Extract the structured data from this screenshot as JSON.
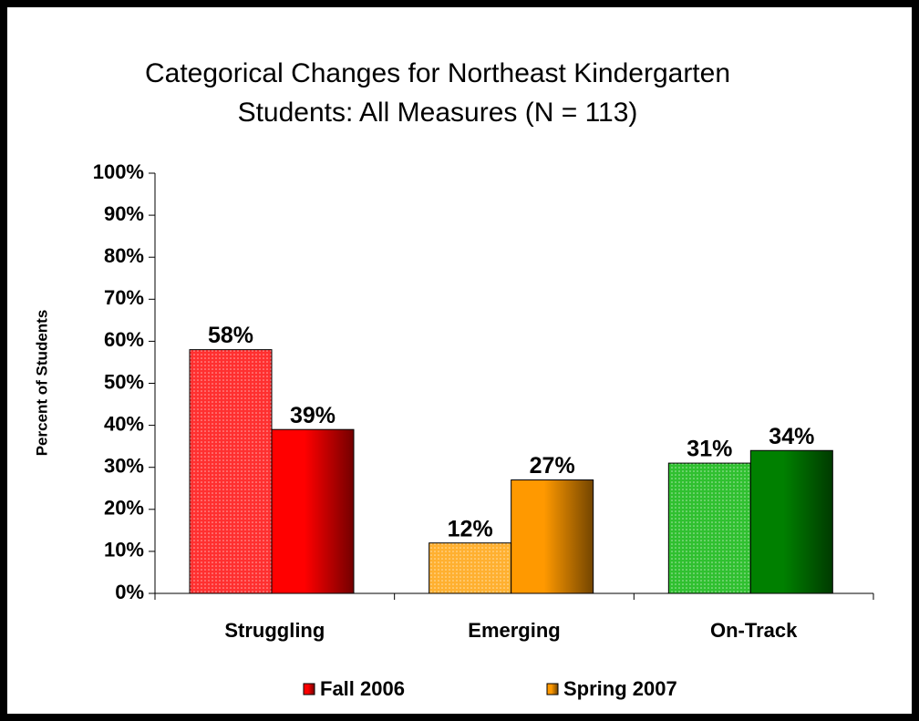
{
  "chart_data": {
    "type": "bar",
    "title": [
      "Categorical Changes for Northeast Kindergarten",
      "Students: All Measures (N = 113)"
    ],
    "y_label": "Percent of Students",
    "categories": [
      "Struggling",
      "Emerging",
      "On-Track"
    ],
    "series": [
      {
        "name": "Fall 2006",
        "color": "#ff0000",
        "bar_colors": [
          "#ff3030",
          "#ffb030",
          "#30c030"
        ],
        "pattern": "dots",
        "values": [
          58,
          12,
          31
        ],
        "value_labels": [
          "58%",
          "12%",
          "31%"
        ]
      },
      {
        "name": "Spring 2007",
        "color": "#ff9900",
        "bar_colors": [
          "#ff0000",
          "#ff9900",
          "#008000"
        ],
        "pattern": "gradient",
        "values": [
          39,
          27,
          34
        ],
        "value_labels": [
          "39%",
          "27%",
          "34%"
        ]
      }
    ],
    "ylim": [
      0,
      100
    ],
    "yticks": [
      {
        "value": 0,
        "label": "0%"
      },
      {
        "value": 10,
        "label": "10%"
      },
      {
        "value": 20,
        "label": "20%"
      },
      {
        "value": 30,
        "label": "30%"
      },
      {
        "value": 40,
        "label": "40%"
      },
      {
        "value": 50,
        "label": "50%"
      },
      {
        "value": 60,
        "label": "60%"
      },
      {
        "value": 70,
        "label": "70%"
      },
      {
        "value": 80,
        "label": "80%"
      },
      {
        "value": 90,
        "label": "90%"
      },
      {
        "value": 100,
        "label": "100%"
      }
    ],
    "grid": false,
    "legend": "bottom"
  }
}
